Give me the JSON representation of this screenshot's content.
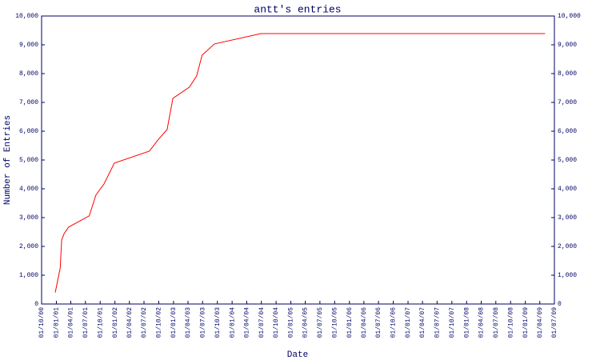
{
  "chart_data": {
    "type": "line",
    "title": "antt's entries",
    "x_label": "Date",
    "y_label": "Number of Entries",
    "color": "#ff0000",
    "x": [
      "25/12/00",
      "25/01/01",
      "03/02/01",
      "18/02/01",
      "18/03/01",
      "25/07/01",
      "04/09/01",
      "25/10/01",
      "28/12/01",
      "04/08/02",
      "25/09/02",
      "22/11/02",
      "28/12/02",
      "10/04/03",
      "25/05/03",
      "28/06/03",
      "13/09/03",
      "28/06/04",
      "04/05/09"
    ],
    "values": [
      400,
      1250,
      2220,
      2440,
      2670,
      3060,
      3780,
      4170,
      4890,
      5310,
      5690,
      6060,
      7140,
      7530,
      7920,
      8640,
      9030,
      9390,
      9390
    ],
    "xlim": [
      "01/10/00",
      "01/07/09"
    ],
    "xticks": [
      "01/10/00",
      "01/01/01",
      "01/04/01",
      "01/07/01",
      "01/10/01",
      "01/01/02",
      "01/04/02",
      "01/07/02",
      "01/10/02",
      "01/01/03",
      "01/04/03",
      "01/07/03",
      "01/10/03",
      "01/01/04",
      "01/04/04",
      "01/07/04",
      "01/10/04",
      "01/01/05",
      "01/04/05",
      "01/07/05",
      "01/10/05",
      "01/01/06",
      "01/04/06",
      "01/07/06",
      "01/10/06",
      "01/01/07",
      "01/04/07",
      "01/07/07",
      "01/10/07",
      "01/01/08",
      "01/04/08",
      "01/07/08",
      "01/10/08",
      "01/01/09",
      "01/04/09",
      "01/07/09"
    ],
    "ylim": [
      0,
      10000
    ],
    "yticks": [
      0,
      {
        "value": 1000,
        "label": "1,000"
      },
      {
        "value": 2000,
        "label": "2,000"
      },
      {
        "value": 3000,
        "label": "3,000"
      },
      {
        "value": 4000,
        "label": "4,000"
      },
      {
        "value": 5000,
        "label": "5,000"
      },
      {
        "value": 6000,
        "label": "6,000"
      },
      {
        "value": 7000,
        "label": "7,000"
      },
      {
        "value": 8000,
        "label": "8,000"
      },
      {
        "value": 9000,
        "label": "9,000"
      },
      {
        "value": 10000,
        "label": "10,000"
      }
    ],
    "y2lim": [
      0,
      10000
    ],
    "y2ticks": [
      0,
      {
        "value": 1000,
        "label": "1,000"
      },
      {
        "value": 2000,
        "label": "2,000"
      },
      {
        "value": 3000,
        "label": "3,000"
      },
      {
        "value": 4000,
        "label": "4,000"
      },
      {
        "value": 5000,
        "label": "5,000"
      },
      {
        "value": 6000,
        "label": "6,000"
      },
      {
        "value": 7000,
        "label": "7,000"
      },
      {
        "value": 8000,
        "label": "8,000"
      },
      {
        "value": 9000,
        "label": "9,000"
      },
      {
        "value": 10000,
        "label": "10,000"
      }
    ]
  }
}
